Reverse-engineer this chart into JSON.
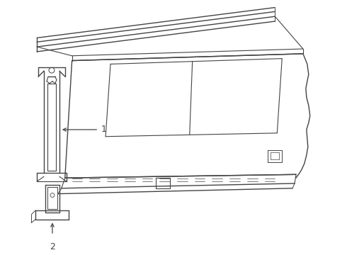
{
  "background_color": "#ffffff",
  "line_color": "#444444",
  "line_width": 1.0,
  "label_1": "1",
  "label_2": "2",
  "figsize": [
    4.9,
    3.6
  ],
  "dpi": 100
}
